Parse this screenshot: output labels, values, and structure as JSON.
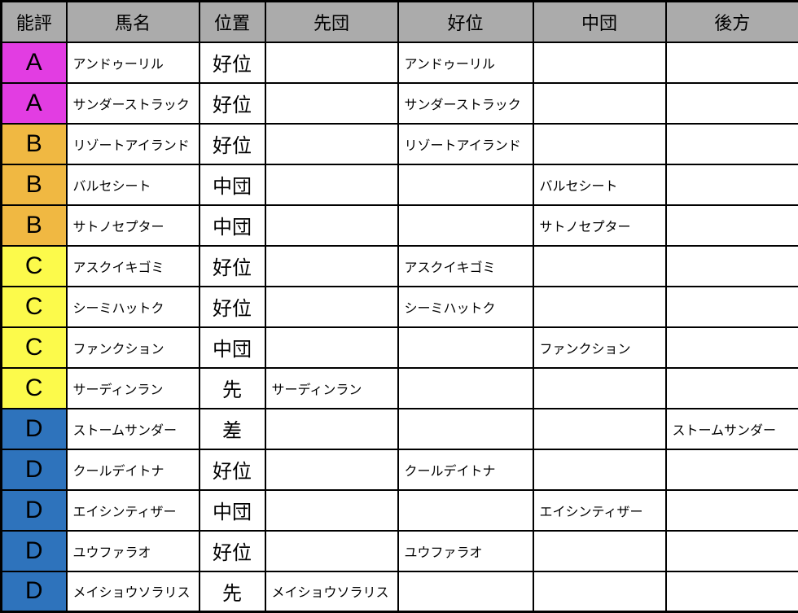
{
  "table": {
    "headers": [
      "能評",
      "馬名",
      "位置",
      "先団",
      "好位",
      "中団",
      "後方"
    ],
    "rows": [
      {
        "rating": "A",
        "name": "アンドゥーリル",
        "position": "好位",
        "placement": "好位"
      },
      {
        "rating": "A",
        "name": "サンダーストラック",
        "position": "好位",
        "placement": "好位"
      },
      {
        "rating": "B",
        "name": "リゾートアイランド",
        "position": "好位",
        "placement": "好位"
      },
      {
        "rating": "B",
        "name": "バルセシート",
        "position": "中団",
        "placement": "中団"
      },
      {
        "rating": "B",
        "name": "サトノセプター",
        "position": "中団",
        "placement": "中団"
      },
      {
        "rating": "C",
        "name": "アスクイキゴミ",
        "position": "好位",
        "placement": "好位"
      },
      {
        "rating": "C",
        "name": "シーミハットク",
        "position": "好位",
        "placement": "好位"
      },
      {
        "rating": "C",
        "name": "ファンクション",
        "position": "中団",
        "placement": "中団"
      },
      {
        "rating": "C",
        "name": "サーディンラン",
        "position": "先",
        "placement": "先団"
      },
      {
        "rating": "D",
        "name": "ストームサンダー",
        "position": "差",
        "placement": "後方"
      },
      {
        "rating": "D",
        "name": "クールデイトナ",
        "position": "好位",
        "placement": "好位"
      },
      {
        "rating": "D",
        "name": "エイシンティザー",
        "position": "中団",
        "placement": "中団"
      },
      {
        "rating": "D",
        "name": "ユウファラオ",
        "position": "好位",
        "placement": "好位"
      },
      {
        "rating": "D",
        "name": "メイショウソラリス",
        "position": "先",
        "placement": "先団"
      }
    ]
  },
  "colors": {
    "header_bg": "#ABABAB",
    "border": "#000000",
    "cell_bg": "#FFFFFF",
    "rating": {
      "A": "#E23DE2",
      "B": "#F0B842",
      "C": "#FCFA4B",
      "D": "#2E73BC"
    }
  },
  "chart_data": {
    "type": "table",
    "title": "",
    "columns": [
      "能評",
      "馬名",
      "位置",
      "先団",
      "好位",
      "中団",
      "後方"
    ],
    "rows": [
      [
        "A",
        "アンドゥーリル",
        "好位",
        "",
        "アンドゥーリル",
        "",
        ""
      ],
      [
        "A",
        "サンダーストラック",
        "好位",
        "",
        "サンダーストラック",
        "",
        ""
      ],
      [
        "B",
        "リゾートアイランド",
        "好位",
        "",
        "リゾートアイランド",
        "",
        ""
      ],
      [
        "B",
        "バルセシート",
        "中団",
        "",
        "",
        "バルセシート",
        ""
      ],
      [
        "B",
        "サトノセプター",
        "中団",
        "",
        "",
        "サトノセプター",
        ""
      ],
      [
        "C",
        "アスクイキゴミ",
        "好位",
        "",
        "アスクイキゴミ",
        "",
        ""
      ],
      [
        "C",
        "シーミハットク",
        "好位",
        "",
        "シーミハットク",
        "",
        ""
      ],
      [
        "C",
        "ファンクション",
        "中団",
        "",
        "",
        "ファンクション",
        ""
      ],
      [
        "C",
        "サーディンラン",
        "先",
        "サーディンラン",
        "",
        "",
        ""
      ],
      [
        "D",
        "ストームサンダー",
        "差",
        "",
        "",
        "",
        "ストームサンダー"
      ],
      [
        "D",
        "クールデイトナ",
        "好位",
        "",
        "クールデイトナ",
        "",
        ""
      ],
      [
        "D",
        "エイシンティザー",
        "中団",
        "",
        "",
        "エイシンティザー",
        ""
      ],
      [
        "D",
        "ユウファラオ",
        "好位",
        "",
        "ユウファラオ",
        "",
        ""
      ],
      [
        "D",
        "メイショウソラリス",
        "先",
        "メイショウソラリス",
        "",
        "",
        ""
      ]
    ],
    "legend": {
      "rating_colors": {
        "A": "#E23DE2",
        "B": "#F0B842",
        "C": "#FCFA4B",
        "D": "#2E73BC"
      },
      "position_to_column": {
        "先": "先団",
        "好位": "好位",
        "中団": "中団",
        "差": "後方"
      }
    }
  }
}
